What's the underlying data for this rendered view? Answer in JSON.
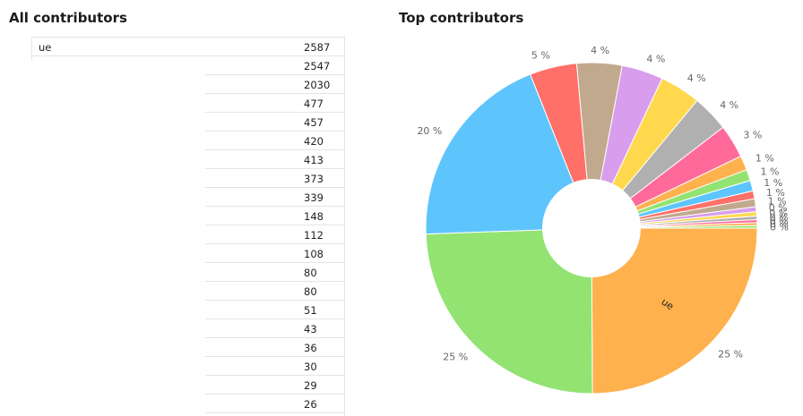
{
  "left_title": "All contributors",
  "right_title": "Top contributors",
  "table": {
    "rows": [
      {
        "name": "ue",
        "value": "2587"
      },
      {
        "name": "",
        "value": "2547"
      },
      {
        "name": "",
        "value": "2030"
      },
      {
        "name": "",
        "value": "477"
      },
      {
        "name": "",
        "value": "457"
      },
      {
        "name": "",
        "value": "420"
      },
      {
        "name": "",
        "value": "413"
      },
      {
        "name": "",
        "value": "373"
      },
      {
        "name": "",
        "value": "339"
      },
      {
        "name": "",
        "value": "148"
      },
      {
        "name": "",
        "value": "112"
      },
      {
        "name": "",
        "value": "108"
      },
      {
        "name": "",
        "value": "80"
      },
      {
        "name": "",
        "value": "80"
      },
      {
        "name": "",
        "value": "51"
      },
      {
        "name": "",
        "value": "43"
      },
      {
        "name": "",
        "value": "36"
      },
      {
        "name": "",
        "value": "30"
      },
      {
        "name": "",
        "value": "29"
      },
      {
        "name": "",
        "value": "26"
      }
    ]
  },
  "chart_data": {
    "type": "pie",
    "title": "Top contributors",
    "donut": true,
    "slices": [
      {
        "label": "ue",
        "value": 2587,
        "pct_label": "25 %",
        "color": "#ffb14e"
      },
      {
        "label": "",
        "value": 2547,
        "pct_label": "25 %",
        "color": "#93e373"
      },
      {
        "label": "",
        "value": 2030,
        "pct_label": "20 %",
        "color": "#5ec5fc"
      },
      {
        "label": "",
        "value": 477,
        "pct_label": "5 %",
        "color": "#ff7068"
      },
      {
        "label": "",
        "value": 457,
        "pct_label": "4 %",
        "color": "#c1a98d"
      },
      {
        "label": "",
        "value": 420,
        "pct_label": "4 %",
        "color": "#d89ded"
      },
      {
        "label": "",
        "value": 413,
        "pct_label": "4 %",
        "color": "#ffd84d"
      },
      {
        "label": "",
        "value": 373,
        "pct_label": "4 %",
        "color": "#b0b0b0"
      },
      {
        "label": "",
        "value": 339,
        "pct_label": "3 %",
        "color": "#ff6a9a"
      },
      {
        "label": "",
        "value": 148,
        "pct_label": "1 %",
        "color": "#ffb14e"
      },
      {
        "label": "",
        "value": 112,
        "pct_label": "1 %",
        "color": "#93e373"
      },
      {
        "label": "",
        "value": 108,
        "pct_label": "1 %",
        "color": "#5ec5fc"
      },
      {
        "label": "",
        "value": 80,
        "pct_label": "1 %",
        "color": "#ff7068"
      },
      {
        "label": "",
        "value": 80,
        "pct_label": "1 %",
        "color": "#c1a98d"
      },
      {
        "label": "",
        "value": 51,
        "pct_label": "0 %",
        "color": "#d89ded"
      },
      {
        "label": "",
        "value": 43,
        "pct_label": "0 %",
        "color": "#ffd84d"
      },
      {
        "label": "",
        "value": 36,
        "pct_label": "0 %",
        "color": "#b0b0b0"
      },
      {
        "label": "",
        "value": 30,
        "pct_label": "0 %",
        "color": "#ff6a9a"
      },
      {
        "label": "",
        "value": 29,
        "pct_label": "0 %",
        "color": "#ffb14e"
      },
      {
        "label": "",
        "value": 26,
        "pct_label": "0 %",
        "color": "#93e373"
      }
    ]
  }
}
